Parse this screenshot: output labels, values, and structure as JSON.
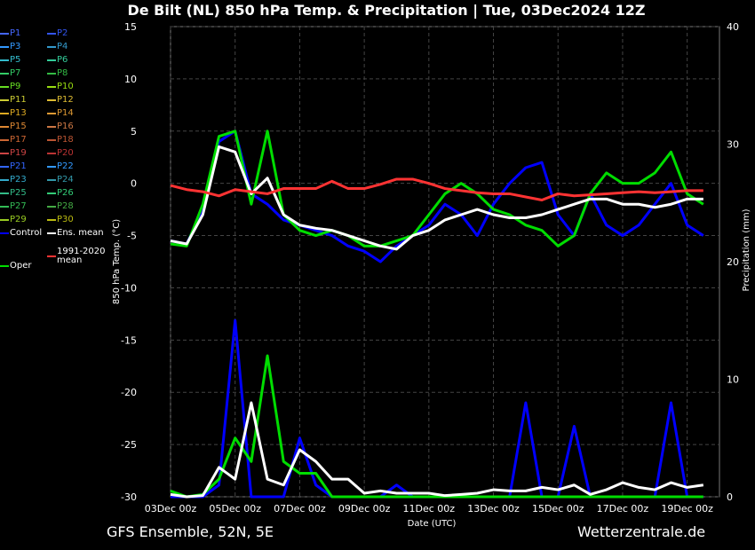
{
  "title": "De Bilt  (NL)  850 hPa Temp. & Precipitation | Tue, 03Dec2024 12Z",
  "footer_left": "GFS Ensemble, 52N, 5E",
  "footer_right": "Wetterzentrale.de",
  "colors": {
    "background": "#000000",
    "control": "#0000ff",
    "ens_mean": "#ffffff",
    "oper": "#00dd00",
    "climate_mean": "#ff3333"
  },
  "chart_data": {
    "type": "line",
    "xlabel": "Date (UTC)",
    "ylabel": "850 hPa Temp. (°C)",
    "y2label": "Precipitation (mm)",
    "ylim": [
      -30,
      15
    ],
    "y2lim": [
      0,
      40
    ],
    "grid": true,
    "yticks": [
      15,
      10,
      5,
      0,
      -5,
      -10,
      -15,
      -20,
      -25,
      -30
    ],
    "y2ticks": [
      40,
      30,
      20,
      10,
      0
    ],
    "xticks": [
      "03Dec 00z",
      "05Dec 00z",
      "07Dec 00z",
      "09Dec 00z",
      "11Dec 00z",
      "13Dec 00z",
      "15Dec 00z",
      "17Dec 00z",
      "19Dec 00z"
    ],
    "x_days": [
      0,
      2,
      4,
      6,
      8,
      10,
      12,
      14,
      16
    ],
    "legend": [
      {
        "label": "P1",
        "color": "#4466ff"
      },
      {
        "label": "P2",
        "color": "#3355ee"
      },
      {
        "label": "P3",
        "color": "#3399ff"
      },
      {
        "label": "P4",
        "color": "#3399cc"
      },
      {
        "label": "P5",
        "color": "#33bbcc"
      },
      {
        "label": "P6",
        "color": "#33cc99"
      },
      {
        "label": "P7",
        "color": "#33cc66"
      },
      {
        "label": "P8",
        "color": "#33bb44"
      },
      {
        "label": "P9",
        "color": "#66dd22"
      },
      {
        "label": "P10",
        "color": "#99dd11"
      },
      {
        "label": "P11",
        "color": "#cccc33"
      },
      {
        "label": "P12",
        "color": "#ddbb33"
      },
      {
        "label": "P13",
        "color": "#ddaa22"
      },
      {
        "label": "P14",
        "color": "#dd9933"
      },
      {
        "label": "P15",
        "color": "#dd8833"
      },
      {
        "label": "P16",
        "color": "#cc7744"
      },
      {
        "label": "P17",
        "color": "#cc6633"
      },
      {
        "label": "P18",
        "color": "#bb5533"
      },
      {
        "label": "P19",
        "color": "#cc4444"
      },
      {
        "label": "P20",
        "color": "#bb3333"
      },
      {
        "label": "P21",
        "color": "#3366ff"
      },
      {
        "label": "P22",
        "color": "#3399ff"
      },
      {
        "label": "P23",
        "color": "#33aacc"
      },
      {
        "label": "P24",
        "color": "#3399aa"
      },
      {
        "label": "P25",
        "color": "#33bb88"
      },
      {
        "label": "P26",
        "color": "#33cc77"
      },
      {
        "label": "P27",
        "color": "#33bb55"
      },
      {
        "label": "P28",
        "color": "#44aa44"
      },
      {
        "label": "P29",
        "color": "#99cc22"
      },
      {
        "label": "P30",
        "color": "#bbbb11"
      },
      {
        "label": "Control",
        "color": "#0000ff"
      },
      {
        "label": "Ens. mean",
        "color": "#ffffff"
      },
      {
        "label": "Oper",
        "color": "#00dd00"
      },
      {
        "label": "1991-2020 mean",
        "color": "#ff3333"
      }
    ],
    "series": [
      {
        "name": "Control",
        "color": "#0000ff",
        "x": [
          0,
          0.5,
          1,
          1.5,
          2,
          2.5,
          3,
          3.5,
          4,
          4.5,
          5,
          5.5,
          6,
          6.5,
          7,
          7.5,
          8,
          8.5,
          9,
          9.5,
          10,
          10.5,
          11,
          11.5,
          12,
          12.5,
          13,
          13.5,
          14,
          14.5,
          15,
          15.5,
          16,
          16.5
        ],
        "y": [
          -5.5,
          -5.8,
          -2.5,
          4,
          5,
          -1,
          -2,
          -3.5,
          -4,
          -4.5,
          -5,
          -6,
          -6.5,
          -7.5,
          -6,
          -5,
          -4,
          -2,
          -3,
          -5,
          -2,
          0,
          1.5,
          2,
          -3,
          -5,
          -1,
          -4,
          -5,
          -4,
          -2,
          0,
          -4,
          -5
        ]
      },
      {
        "name": "Oper",
        "color": "#00dd00",
        "x": [
          0,
          0.5,
          1,
          1.5,
          2,
          2.5,
          3,
          3.5,
          4,
          4.5,
          5,
          5.5,
          6,
          6.5,
          7,
          7.5,
          8,
          8.5,
          9,
          9.5,
          10,
          10.5,
          11,
          11.5,
          12,
          12.5,
          13,
          13.5,
          14,
          14.5,
          15,
          15.5,
          16,
          16.5
        ],
        "y": [
          -5.8,
          -6,
          -2,
          4.5,
          5,
          -2,
          5,
          -3,
          -4.5,
          -5,
          -4.5,
          -5,
          -6,
          -6,
          -5.5,
          -5,
          -3,
          -1,
          0,
          -1,
          -2.5,
          -3,
          -4,
          -4.5,
          -6,
          -5,
          -1,
          1,
          0,
          0,
          1,
          3,
          -1,
          -2
        ]
      },
      {
        "name": "Ens. mean",
        "color": "#ffffff",
        "x": [
          0,
          0.5,
          1,
          1.5,
          2,
          2.5,
          3,
          3.5,
          4,
          4.5,
          5,
          5.5,
          6,
          6.5,
          7,
          7.5,
          8,
          8.5,
          9,
          9.5,
          10,
          10.5,
          11,
          11.5,
          12,
          12.5,
          13,
          13.5,
          14,
          14.5,
          15,
          15.5,
          16,
          16.5
        ],
        "y": [
          -5.5,
          -5.8,
          -3,
          3.5,
          3,
          -1,
          0.5,
          -3,
          -4,
          -4.3,
          -4.5,
          -5,
          -5.5,
          -6,
          -6.3,
          -5,
          -4.5,
          -3.5,
          -3,
          -2.5,
          -3,
          -3.3,
          -3.3,
          -3,
          -2.5,
          -2,
          -1.5,
          -1.5,
          -2,
          -2,
          -2.3,
          -2,
          -1.5,
          -1.5
        ]
      },
      {
        "name": "1991-2020 mean",
        "color": "#ff3333",
        "x": [
          0,
          0.5,
          1,
          1.5,
          2,
          2.5,
          3,
          3.5,
          4,
          4.5,
          5,
          5.5,
          6,
          6.5,
          7,
          7.5,
          8,
          8.5,
          9,
          9.5,
          10,
          10.5,
          11,
          11.5,
          12,
          12.5,
          13,
          13.5,
          14,
          14.5,
          15,
          15.5,
          16,
          16.5
        ],
        "y": [
          -0.2,
          -0.6,
          -0.8,
          -1.2,
          -0.6,
          -0.8,
          -1,
          -0.5,
          -0.5,
          -0.5,
          0.2,
          -0.5,
          -0.5,
          -0.1,
          0.4,
          0.4,
          0,
          -0.5,
          -0.7,
          -0.9,
          -1,
          -1,
          -1.3,
          -1.6,
          -1,
          -1.2,
          -1.1,
          -1,
          -0.9,
          -0.8,
          -0.9,
          -0.8,
          -0.7,
          -0.7
        ]
      }
    ],
    "precipitation_mean": {
      "x": [
        0,
        0.5,
        1,
        1.5,
        2,
        2.5,
        3,
        3.5,
        4,
        4.5,
        5,
        5.5,
        6,
        6.5,
        7,
        7.5,
        8,
        8.5,
        9,
        9.5,
        10,
        10.5,
        11,
        11.5,
        12,
        12.5,
        13,
        13.5,
        14,
        14.5,
        15,
        15.5,
        16,
        16.5
      ],
      "y": [
        0.2,
        0,
        0.1,
        2.5,
        1.5,
        8,
        1.5,
        1,
        4,
        3,
        1.5,
        1.5,
        0.3,
        0.5,
        0.3,
        0.3,
        0.3,
        0.1,
        0.2,
        0.3,
        0.6,
        0.5,
        0.5,
        0.8,
        0.6,
        1,
        0.2,
        0.6,
        1.2,
        0.8,
        0.6,
        1.2,
        0.8,
        1
      ]
    },
    "precipitation_control": {
      "x": [
        0,
        0.5,
        1,
        1.5,
        2,
        2.5,
        3,
        3.5,
        4,
        4.5,
        5,
        5.5,
        6,
        6.5,
        7,
        7.5,
        8,
        8.5,
        9,
        9.5,
        10,
        10.5,
        11,
        11.5,
        12,
        12.5,
        13,
        13.5,
        14,
        14.5,
        15,
        15.5,
        16,
        16.5
      ],
      "y": [
        0,
        0,
        0,
        1,
        15,
        0,
        0,
        0,
        5,
        1,
        0,
        0,
        0,
        0,
        1,
        0,
        0,
        0,
        0,
        0,
        0,
        0,
        8,
        0,
        0,
        6,
        0,
        0,
        0,
        0,
        0,
        8,
        0,
        0
      ]
    },
    "precipitation_oper": {
      "x": [
        0,
        0.5,
        1,
        1.5,
        2,
        2.5,
        3,
        3.5,
        4,
        4.5,
        5,
        5.5,
        6,
        6.5,
        7,
        7.5,
        8,
        8.5,
        9,
        9.5,
        10,
        10.5,
        11,
        11.5,
        12,
        12.5,
        13,
        13.5,
        14,
        14.5,
        15,
        15.5,
        16,
        16.5
      ],
      "y": [
        0.5,
        0,
        0.2,
        1.5,
        5,
        3,
        12,
        3,
        2,
        2,
        0,
        0,
        0,
        0,
        0,
        0,
        0,
        0,
        0,
        0,
        0,
        0,
        0,
        0,
        0,
        0,
        0,
        0,
        0,
        0,
        0,
        0,
        0,
        0
      ]
    }
  }
}
